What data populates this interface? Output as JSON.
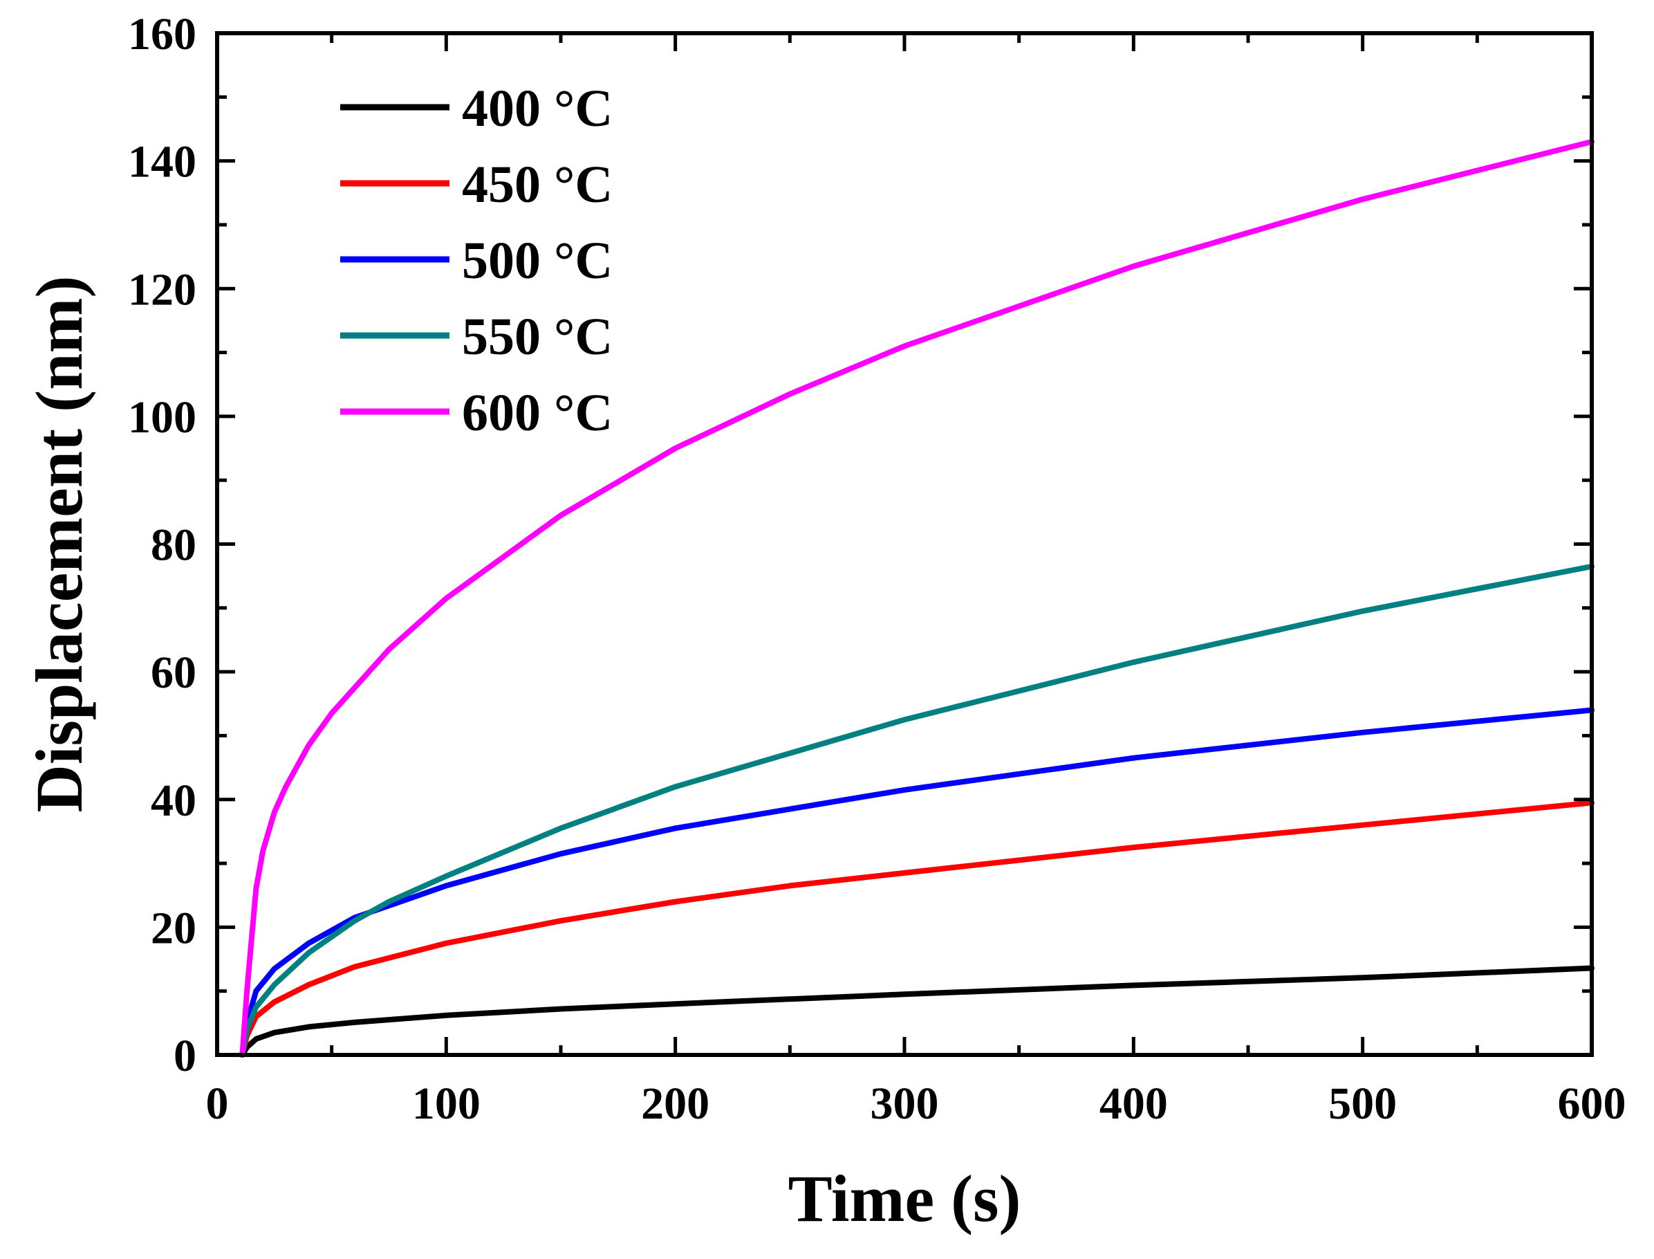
{
  "chart_data": {
    "type": "line",
    "title": "",
    "xlabel": "Time (s)",
    "ylabel": "Displacement (nm)",
    "xlim": [
      0,
      600
    ],
    "ylim": [
      0,
      160
    ],
    "x_ticks": [
      0,
      100,
      200,
      300,
      400,
      500,
      600
    ],
    "y_ticks": [
      0,
      20,
      40,
      60,
      80,
      100,
      120,
      140,
      160
    ],
    "x_tick_labels": [
      "0",
      "100",
      "200",
      "300",
      "400",
      "500",
      "600"
    ],
    "y_tick_labels": [
      "0",
      "20",
      "40",
      "60",
      "80",
      "100",
      "120",
      "140",
      "160"
    ],
    "grid": false,
    "legend_position": "top-left",
    "series": [
      {
        "name": "400 °C",
        "color": "#000000",
        "x": [
          11,
          13,
          17,
          25,
          40,
          60,
          100,
          150,
          200,
          300,
          400,
          500,
          600
        ],
        "values": [
          0,
          1.2,
          2.5,
          3.5,
          4.4,
          5.1,
          6.2,
          7.2,
          8.0,
          9.5,
          10.9,
          12.1,
          13.6
        ]
      },
      {
        "name": "450 °C",
        "color": "#ff0000",
        "x": [
          11,
          13,
          17,
          25,
          40,
          60,
          100,
          150,
          200,
          250,
          300,
          400,
          500,
          600
        ],
        "values": [
          0,
          3.0,
          6.0,
          8.3,
          11.0,
          13.8,
          17.5,
          21.0,
          24.0,
          26.5,
          28.5,
          32.5,
          36.0,
          39.5
        ]
      },
      {
        "name": "500 °C",
        "color": "#0000ff",
        "x": [
          11,
          13,
          17,
          25,
          40,
          60,
          80,
          100,
          150,
          200,
          300,
          400,
          500,
          600
        ],
        "values": [
          0,
          5.0,
          10.0,
          13.5,
          17.5,
          21.5,
          24.0,
          26.5,
          31.5,
          35.5,
          41.5,
          46.5,
          50.5,
          54.0
        ]
      },
      {
        "name": "550 °C",
        "color": "#008080",
        "x": [
          11,
          13,
          17,
          25,
          40,
          60,
          75,
          100,
          150,
          200,
          300,
          400,
          500,
          600
        ],
        "values": [
          0,
          4.0,
          7.5,
          11.0,
          16.0,
          21.0,
          24.0,
          28.0,
          35.5,
          42.0,
          52.5,
          61.5,
          69.5,
          76.5
        ]
      },
      {
        "name": "600 °C",
        "color": "#ff00ff",
        "x": [
          11,
          13,
          17,
          20,
          25,
          30,
          40,
          50,
          75,
          100,
          150,
          200,
          250,
          300,
          400,
          500,
          600
        ],
        "values": [
          0,
          10.0,
          26.0,
          32.0,
          38.0,
          42.0,
          48.5,
          53.5,
          63.5,
          71.5,
          84.5,
          95.0,
          103.5,
          111.0,
          123.5,
          134.0,
          143.0
        ]
      }
    ]
  }
}
